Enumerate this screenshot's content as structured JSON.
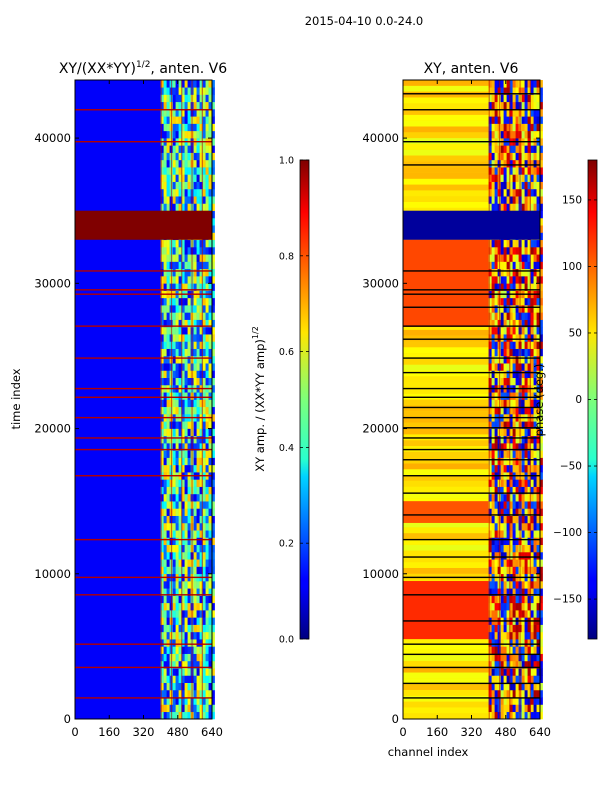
{
  "suptitle": "2015-04-10 0.0-24.0",
  "chart_data": [
    {
      "type": "heatmap",
      "title": "XY/(XX*YY)",
      "title_exponent": "1/2",
      "title_suffix": ", anten. V6",
      "xlabel": "",
      "ylabel": "time index",
      "xlim": [
        0,
        640
      ],
      "ylim": [
        0,
        44000
      ],
      "xticks": [
        0,
        160,
        320,
        480,
        640
      ],
      "yticks": [
        0,
        10000,
        20000,
        30000,
        40000
      ],
      "colorbar": {
        "label": "XY amp. / (XX*YY amp)",
        "label_exponent": "1/2",
        "range": [
          0.0,
          1.0
        ],
        "ticks": [
          "0.0",
          "0.2",
          "0.4",
          "0.6",
          "0.8",
          "1.0"
        ],
        "tick_values": [
          0.0,
          0.2,
          0.4,
          0.6,
          0.8,
          1.0
        ],
        "colormap": "jet"
      },
      "saturated_band_time_range": [
        33000,
        35000
      ],
      "band_value": 1.0,
      "background_value": 0.12,
      "active_channel_range": [
        400,
        640
      ],
      "flagged_rows_time": [
        1500,
        3600,
        5200,
        8600,
        9800,
        12400,
        16800,
        18600,
        19400,
        20800,
        22200,
        22800,
        24900,
        27100,
        29300,
        29600,
        30900,
        39800,
        42000
      ]
    },
    {
      "type": "heatmap",
      "title": "XY, anten. V6",
      "xlabel": "channel index",
      "ylabel": "",
      "xlim": [
        0,
        640
      ],
      "ylim": [
        0,
        44000
      ],
      "xticks": [
        0,
        160,
        320,
        480,
        640
      ],
      "yticks": [
        0,
        10000,
        20000,
        30000,
        40000
      ],
      "colorbar": {
        "label": "phase (deg.)",
        "range": [
          -180,
          180
        ],
        "ticks": [
          "150",
          "100",
          "50",
          "0",
          "−50",
          "−100",
          "−150"
        ],
        "tick_values": [
          150,
          100,
          50,
          0,
          -50,
          -100,
          -150
        ],
        "colormap": "jet"
      },
      "dark_band_time_range": [
        33000,
        35000
      ],
      "band_value": -170,
      "background_value_deg": 55,
      "high_phase_regions": [
        [
          5500,
          9500,
          120
        ],
        [
          13500,
          15000,
          105
        ],
        [
          27000,
          33000,
          110
        ]
      ],
      "active_channel_range": [
        400,
        640
      ],
      "flagged_rows_time": [
        1500,
        2500,
        3600,
        4500,
        5200,
        6800,
        8600,
        9800,
        11200,
        12400,
        14100,
        15600,
        16800,
        17900,
        18600,
        19400,
        20100,
        20800,
        21500,
        22200,
        22800,
        23900,
        24900,
        26200,
        27100,
        28400,
        29300,
        29600,
        30900,
        38200,
        39800,
        42000,
        43100
      ]
    }
  ]
}
